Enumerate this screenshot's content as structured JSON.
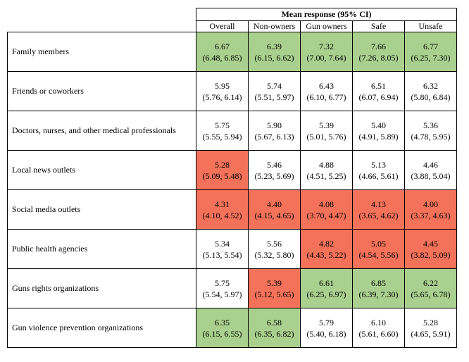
{
  "table": {
    "group_header": "Mean response (95% CI)",
    "columns": [
      "Overall",
      "Non-owners",
      "Gun owners",
      "Safe",
      "Unsafe"
    ],
    "colors": {
      "green": "#a9d08e",
      "red": "#f4725a"
    },
    "rows": [
      {
        "label": "Family members",
        "cells": [
          {
            "mean": "6.67",
            "ci": "(6.48, 6.85)",
            "highlight": "green"
          },
          {
            "mean": "6.39",
            "ci": "(6.15, 6.62)",
            "highlight": "green"
          },
          {
            "mean": "7.32",
            "ci": "(7.00, 7.64)",
            "highlight": "green"
          },
          {
            "mean": "7.66",
            "ci": "(7.26, 8.05)",
            "highlight": "green"
          },
          {
            "mean": "6.77",
            "ci": "(6.25, 7.30)",
            "highlight": "green"
          }
        ]
      },
      {
        "label": "Friends or coworkers",
        "cells": [
          {
            "mean": "5.95",
            "ci": "(5.76, 6.14)",
            "highlight": "none"
          },
          {
            "mean": "5.74",
            "ci": "(5.51, 5.97)",
            "highlight": "none"
          },
          {
            "mean": "6.43",
            "ci": "(6.10, 6.77)",
            "highlight": "none"
          },
          {
            "mean": "6.51",
            "ci": "(6.07, 6.94)",
            "highlight": "none"
          },
          {
            "mean": "6.32",
            "ci": "(5.80, 6.84)",
            "highlight": "none"
          }
        ]
      },
      {
        "label": "Doctors, nurses, and other medical professionals",
        "cells": [
          {
            "mean": "5.75",
            "ci": "(5.55, 5.94)",
            "highlight": "none"
          },
          {
            "mean": "5.90",
            "ci": "(5.67, 6.13)",
            "highlight": "none"
          },
          {
            "mean": "5.39",
            "ci": "(5.01, 5.76)",
            "highlight": "none"
          },
          {
            "mean": "5.40",
            "ci": "(4.91, 5.89)",
            "highlight": "none"
          },
          {
            "mean": "5.36",
            "ci": "(4.78, 5.95)",
            "highlight": "none"
          }
        ]
      },
      {
        "label": "Local news outlets",
        "cells": [
          {
            "mean": "5.28",
            "ci": "(5.09, 5.48)",
            "highlight": "red"
          },
          {
            "mean": "5.46",
            "ci": "(5.23, 5.69)",
            "highlight": "none"
          },
          {
            "mean": "4.88",
            "ci": "(4.51, 5.25)",
            "highlight": "none"
          },
          {
            "mean": "5.13",
            "ci": "(4.66, 5.61)",
            "highlight": "none"
          },
          {
            "mean": "4.46",
            "ci": "(3.88, 5.04)",
            "highlight": "none"
          }
        ]
      },
      {
        "label": "Social media outlets",
        "cells": [
          {
            "mean": "4.31",
            "ci": "(4.10, 4.52)",
            "highlight": "red"
          },
          {
            "mean": "4.40",
            "ci": "(4.15, 4.65)",
            "highlight": "red"
          },
          {
            "mean": "4.08",
            "ci": "(3.70, 4.47)",
            "highlight": "red"
          },
          {
            "mean": "4.13",
            "ci": "(3.65, 4.62)",
            "highlight": "red"
          },
          {
            "mean": "4.00",
            "ci": "(3.37, 4.63)",
            "highlight": "red"
          }
        ]
      },
      {
        "label": "Public health agencies",
        "cells": [
          {
            "mean": "5.34",
            "ci": "(5.13, 5.54)",
            "highlight": "none"
          },
          {
            "mean": "5.56",
            "ci": "(5.32, 5.80)",
            "highlight": "none"
          },
          {
            "mean": "4.82",
            "ci": "(4.43, 5.22)",
            "highlight": "red"
          },
          {
            "mean": "5.05",
            "ci": "(4.54, 5.56)",
            "highlight": "red"
          },
          {
            "mean": "4.45",
            "ci": "(3.82, 5.09)",
            "highlight": "red"
          }
        ]
      },
      {
        "label": "Guns rights organizations",
        "cells": [
          {
            "mean": "5.75",
            "ci": "(5.54, 5.97)",
            "highlight": "none"
          },
          {
            "mean": "5.39",
            "ci": "(5.12, 5.65)",
            "highlight": "red"
          },
          {
            "mean": "6.61",
            "ci": "(6.25, 6.97)",
            "highlight": "green"
          },
          {
            "mean": "6.85",
            "ci": "(6.39, 7.30)",
            "highlight": "green"
          },
          {
            "mean": "6.22",
            "ci": "(5.65, 6.78)",
            "highlight": "green"
          }
        ]
      },
      {
        "label": "Gun violence prevention organizations",
        "cells": [
          {
            "mean": "6.35",
            "ci": "(6.15, 6.55)",
            "highlight": "green"
          },
          {
            "mean": "6.58",
            "ci": "(6.35, 6.82)",
            "highlight": "green"
          },
          {
            "mean": "5.79",
            "ci": "(5.40, 6.18)",
            "highlight": "none"
          },
          {
            "mean": "6.10",
            "ci": "(5.61, 6.60)",
            "highlight": "none"
          },
          {
            "mean": "5.28",
            "ci": "(4.65, 5.91)",
            "highlight": "none"
          }
        ]
      }
    ]
  }
}
